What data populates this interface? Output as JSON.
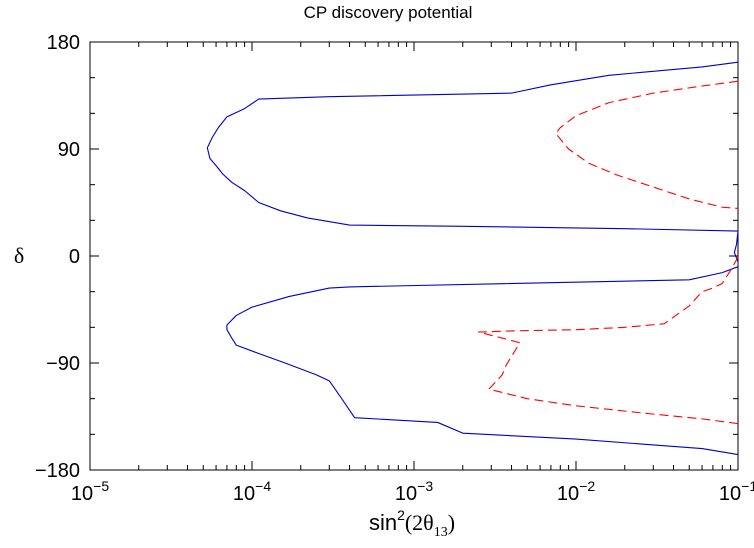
{
  "chart_data": {
    "type": "line",
    "title": "CP discovery potential",
    "xlabel": {
      "prefix": "sin",
      "power": "2",
      "open": "(2θ",
      "subscript": "13",
      "close": ")"
    },
    "ylabel": "δ",
    "xscale": "log",
    "xlim": [
      1e-05,
      0.1
    ],
    "ylim": [
      -180,
      180
    ],
    "x_ticks": [
      {
        "value": 1e-05,
        "base": "10",
        "exp": "−5"
      },
      {
        "value": 0.0001,
        "base": "10",
        "exp": "−4"
      },
      {
        "value": 0.001,
        "base": "10",
        "exp": "−3"
      },
      {
        "value": 0.01,
        "base": "10",
        "exp": "−2"
      },
      {
        "value": 0.1,
        "base": "10",
        "exp": "−1"
      }
    ],
    "y_ticks": [
      {
        "value": 180,
        "label": "180"
      },
      {
        "value": 90,
        "label": "90"
      },
      {
        "value": 0,
        "label": "0"
      },
      {
        "value": -90,
        "label": "−90"
      },
      {
        "value": -180,
        "label": "−180"
      }
    ],
    "grid": false,
    "legend": "none",
    "series": [
      {
        "style": "solid",
        "color": "#0000cc",
        "points": [
          [
            0.1,
            163
          ],
          [
            0.06,
            159
          ],
          [
            0.016,
            152
          ],
          [
            0.007,
            144
          ],
          [
            0.004,
            137
          ],
          [
            0.0003,
            134
          ],
          [
            0.00011,
            132
          ],
          [
            9e-05,
            124
          ],
          [
            7e-05,
            117
          ],
          [
            6.2e-05,
            108
          ],
          [
            5.7e-05,
            100
          ],
          [
            5.3e-05,
            91
          ],
          [
            5.5e-05,
            82
          ],
          [
            6e-05,
            76
          ],
          [
            6.6e-05,
            69
          ],
          [
            7.5e-05,
            62
          ],
          [
            9e-05,
            55
          ],
          [
            0.00011,
            45
          ],
          [
            0.00015,
            38
          ],
          [
            0.00022,
            32
          ],
          [
            0.0004,
            26
          ],
          [
            0.002,
            25
          ],
          [
            0.02,
            23
          ],
          [
            0.1,
            21
          ]
        ]
      },
      {
        "style": "solid",
        "color": "#0000cc",
        "points": [
          [
            0.1,
            21
          ],
          [
            0.098,
            10
          ],
          [
            0.095,
            3
          ],
          [
            0.1,
            -5
          ]
        ]
      },
      {
        "style": "solid",
        "color": "#0000cc",
        "points": [
          [
            0.1,
            -9
          ],
          [
            0.08,
            -14
          ],
          [
            0.05,
            -20
          ],
          [
            0.0004,
            -26
          ],
          [
            0.0003,
            -27
          ],
          [
            0.00017,
            -34
          ],
          [
            0.0001,
            -43
          ],
          [
            8e-05,
            -50
          ],
          [
            7e-05,
            -58
          ],
          [
            7e-05,
            -62
          ],
          [
            7.5e-05,
            -69
          ],
          [
            8e-05,
            -75
          ],
          [
            0.00011,
            -82
          ],
          [
            0.00016,
            -90
          ],
          [
            0.00025,
            -100
          ],
          [
            0.0003,
            -105
          ],
          [
            0.00035,
            -118
          ],
          [
            0.00043,
            -136
          ],
          [
            0.0014,
            -140
          ],
          [
            0.002,
            -149
          ],
          [
            0.01,
            -154
          ],
          [
            0.06,
            -162
          ],
          [
            0.1,
            -167
          ]
        ]
      },
      {
        "style": "dashed",
        "color": "#ff0000",
        "points": [
          [
            0.1,
            147
          ],
          [
            0.06,
            143
          ],
          [
            0.03,
            137
          ],
          [
            0.016,
            129
          ],
          [
            0.01,
            118
          ],
          [
            0.008,
            108
          ],
          [
            0.0075,
            103
          ],
          [
            0.009,
            90
          ],
          [
            0.012,
            78
          ],
          [
            0.018,
            68
          ],
          [
            0.03,
            58
          ],
          [
            0.05,
            48
          ],
          [
            0.08,
            41
          ],
          [
            0.1,
            40
          ]
        ]
      },
      {
        "style": "dashed",
        "color": "#ff0000",
        "points": [
          [
            0.1,
            -1
          ],
          [
            0.09,
            -12
          ],
          [
            0.08,
            -23
          ],
          [
            0.07,
            -27
          ],
          [
            0.06,
            -30
          ],
          [
            0.05,
            -42
          ],
          [
            0.035,
            -57
          ],
          [
            0.02,
            -60
          ],
          [
            0.01,
            -62
          ],
          [
            0.004,
            -63
          ],
          [
            0.0025,
            -64
          ],
          [
            0.0035,
            -69
          ],
          [
            0.0045,
            -73
          ],
          [
            0.0037,
            -92
          ],
          [
            0.0035,
            -100
          ],
          [
            0.0029,
            -112
          ],
          [
            0.005,
            -120
          ],
          [
            0.01,
            -126
          ],
          [
            0.03,
            -133
          ],
          [
            0.06,
            -137
          ],
          [
            0.1,
            -141
          ]
        ]
      }
    ]
  }
}
